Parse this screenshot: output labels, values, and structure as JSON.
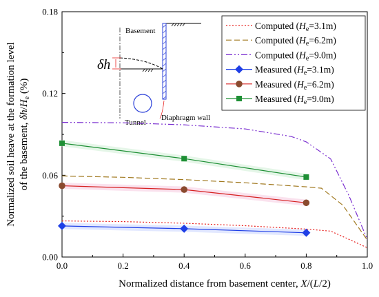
{
  "chart_data": {
    "type": "line",
    "xlabel": "Normalized distance from basement center, X/(L/2)",
    "ylabel_line1": "Normalized soil heave at the formation level",
    "ylabel_line2": "of the basement, δh/He (%)",
    "xlim": [
      0,
      1.0
    ],
    "ylim": [
      0,
      0.18
    ],
    "xticks": [
      "0.0",
      "0.2",
      "0.4",
      "0.6",
      "0.8",
      "1.0"
    ],
    "yticks": [
      "0.00",
      "0.06",
      "0.12",
      "0.18"
    ],
    "grid": false,
    "legend_position": "top-right",
    "series": [
      {
        "name": "Computed (He=3.1m)",
        "legend_main": "Computed (",
        "legend_sym": "H",
        "legend_sub": "e",
        "legend_tail": "=3.1m)",
        "kind": "computed",
        "color": "#e8211f",
        "dash": "2,2.5",
        "x": [
          0,
          0.2,
          0.4,
          0.6,
          0.8,
          0.88,
          0.94,
          1.0
        ],
        "y": [
          0.0265,
          0.026,
          0.0248,
          0.023,
          0.0205,
          0.019,
          0.013,
          0.0068
        ]
      },
      {
        "name": "Computed (He=6.2m)",
        "legend_main": "Computed (",
        "legend_sym": "H",
        "legend_sub": "e",
        "legend_tail": "=6.2m)",
        "kind": "computed",
        "color": "#a0781e",
        "dash": "8,4",
        "x": [
          0,
          0.2,
          0.4,
          0.6,
          0.8,
          0.85,
          0.92,
          1.0
        ],
        "y": [
          0.0595,
          0.0585,
          0.0568,
          0.0545,
          0.0515,
          0.0505,
          0.038,
          0.0125
        ]
      },
      {
        "name": "Computed (He=9.0m)",
        "legend_main": "Computed (",
        "legend_sym": "H",
        "legend_sub": "e",
        "legend_tail": "=9.0m)",
        "kind": "computed",
        "color": "#7a2fd0",
        "dash": "9,3,2,3,2,3",
        "x": [
          0,
          0.2,
          0.4,
          0.6,
          0.75,
          0.8,
          0.88,
          0.94,
          1.0
        ],
        "y": [
          0.0988,
          0.0985,
          0.097,
          0.094,
          0.0885,
          0.0845,
          0.072,
          0.045,
          0.013
        ]
      },
      {
        "name": "Measured (He=3.1m)",
        "legend_main": "Measured (",
        "legend_sym": "H",
        "legend_sub": "e",
        "legend_tail": "=3.1m)",
        "kind": "measured",
        "marker": "diamond",
        "color": "#1f3fe6",
        "marker_fill": "#1f3fe6",
        "band": "#cfd8ff",
        "x": [
          0,
          0.4,
          0.8
        ],
        "y": [
          0.0228,
          0.0208,
          0.0178
        ]
      },
      {
        "name": "Measured (He=6.2m)",
        "legend_main": "Measured (",
        "legend_sym": "H",
        "legend_sub": "e",
        "legend_tail": "=6.2m)",
        "kind": "measured",
        "marker": "circle",
        "color": "#d62020",
        "marker_fill": "#8a4a2e",
        "band": "#f7cfe3",
        "x": [
          0,
          0.4,
          0.8
        ],
        "y": [
          0.0523,
          0.0495,
          0.0398
        ]
      },
      {
        "name": "Measured (He=9.0m)",
        "legend_main": "Measured (",
        "legend_sym": "H",
        "legend_sub": "e",
        "legend_tail": "=9.0m)",
        "kind": "measured",
        "marker": "square",
        "color": "#1e8f35",
        "marker_fill": "#1e8f35",
        "band": "#d3f0d8",
        "x": [
          0,
          0.4,
          0.8
        ],
        "y": [
          0.0835,
          0.0722,
          0.0587
        ]
      }
    ]
  },
  "inset": {
    "basement_label": "Basement",
    "heave_label": "δh",
    "tunnel_label": "Tunnel",
    "wall_label": "Diaphragm wall"
  }
}
